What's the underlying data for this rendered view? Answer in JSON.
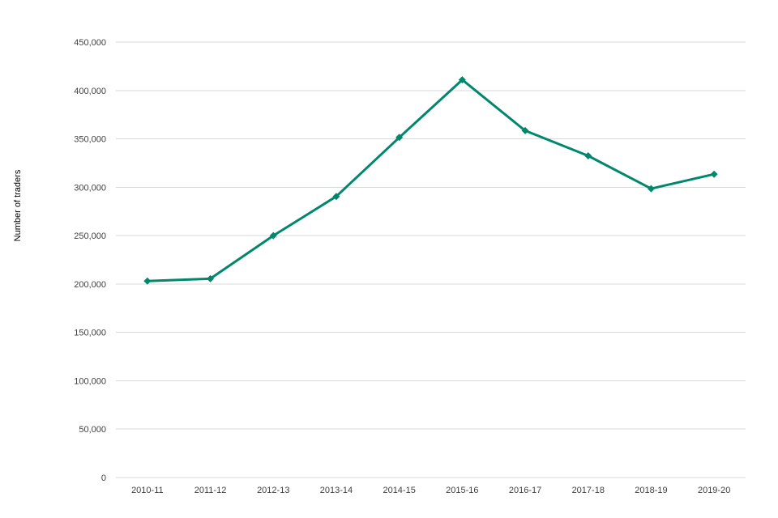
{
  "chart_data": {
    "type": "line",
    "title": "",
    "xlabel": "",
    "ylabel": "Number of traders",
    "categories": [
      "2010-11",
      "2011-12",
      "2012-13",
      "2013-14",
      "2014-15",
      "2015-16",
      "2016-17",
      "2017-18",
      "2018-19",
      "2019-20"
    ],
    "series": [
      {
        "values": [
          203000,
          205500,
          250000,
          290500,
          351500,
          411000,
          358500,
          332500,
          298500,
          313500
        ],
        "color": "#00876c",
        "marker": "diamond"
      }
    ],
    "ylim": [
      0,
      450000
    ],
    "yticks": [
      0,
      50000,
      100000,
      150000,
      200000,
      250000,
      300000,
      350000,
      400000,
      450000
    ],
    "ytick_labels": [
      "0",
      "50,000",
      "100,000",
      "150,000",
      "200,000",
      "250,000",
      "300,000",
      "350,000",
      "400,000",
      "450,000"
    ],
    "grid": true,
    "gridline_color": "#d9d9d9",
    "legend": "none"
  }
}
